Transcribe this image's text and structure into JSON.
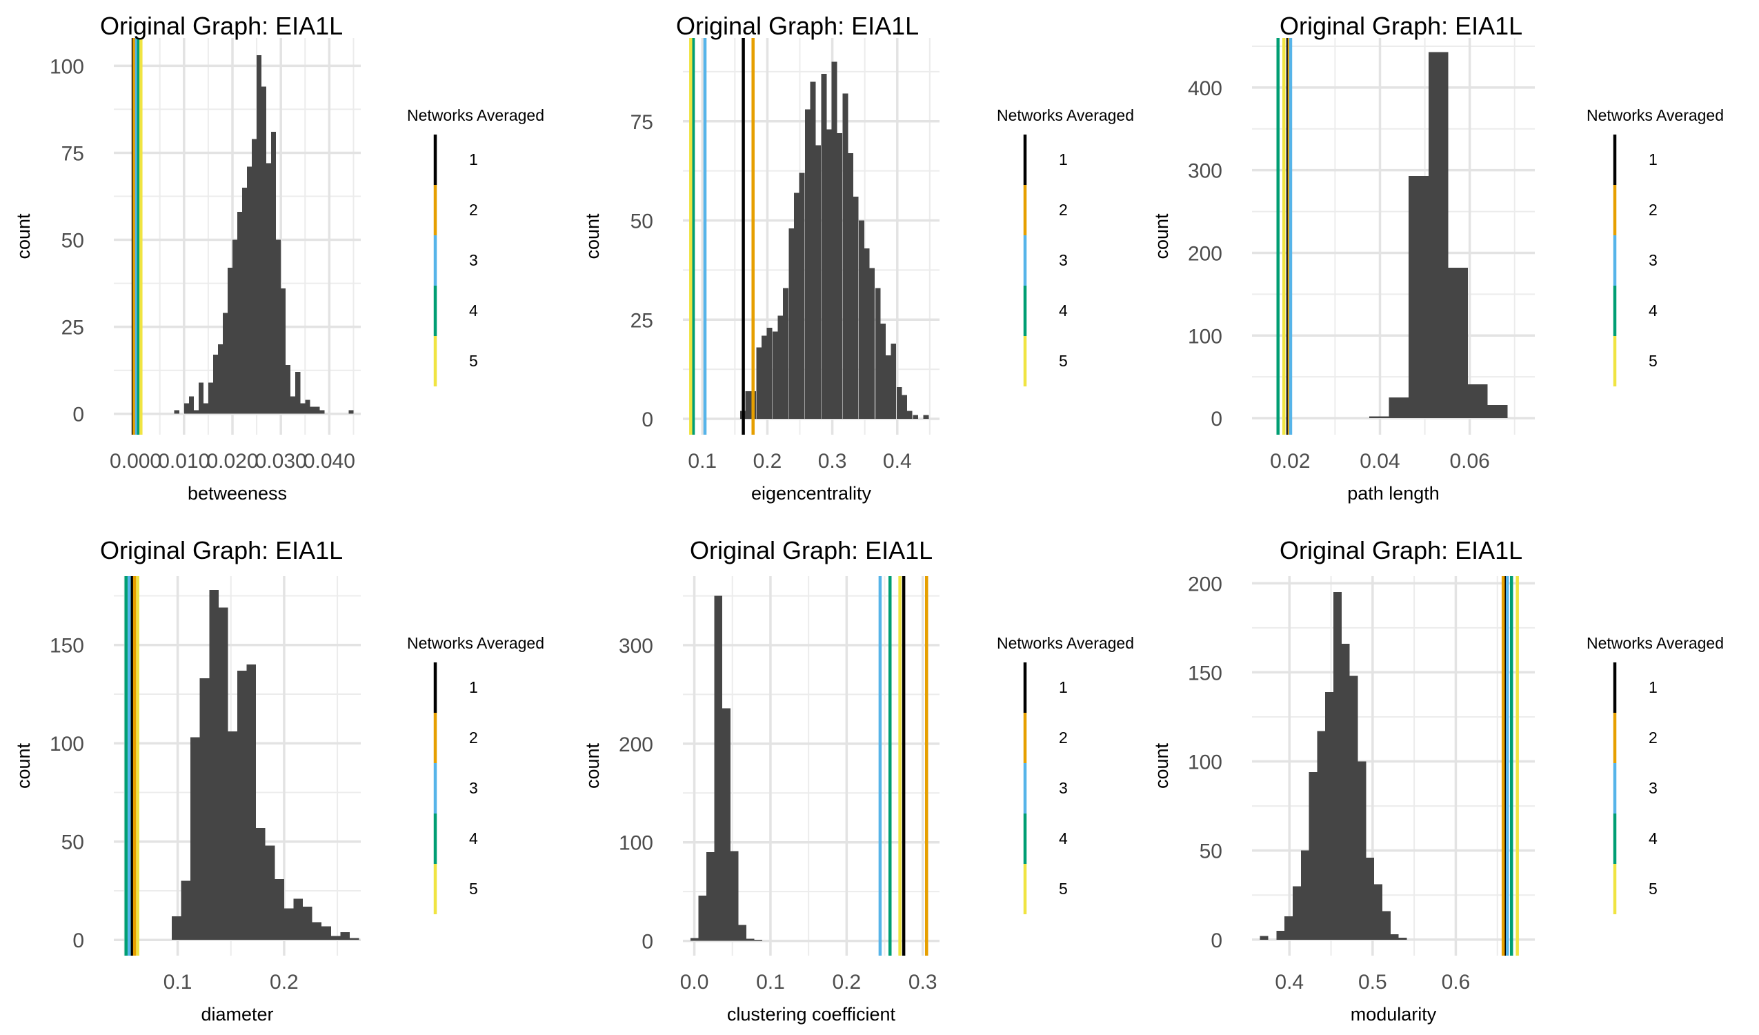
{
  "legend": {
    "title": "Networks Averaged",
    "items": [
      {
        "label": "1",
        "color": "#000000"
      },
      {
        "label": "2",
        "color": "#E69F00"
      },
      {
        "label": "3",
        "color": "#56B4E9"
      },
      {
        "label": "4",
        "color": "#009E73"
      },
      {
        "label": "5",
        "color": "#F0E442"
      }
    ]
  },
  "chart_data": [
    {
      "type": "histogram",
      "title": "Original Graph: EIA1L",
      "xlabel": "betweeness",
      "ylabel": "count",
      "xlim": [
        -0.0045,
        0.0465
      ],
      "ylim": [
        -6,
        108
      ],
      "xticks": [
        0.0,
        0.01,
        0.02,
        0.03,
        0.04
      ],
      "xtick_labels": [
        "0.000",
        "0.010",
        "0.020",
        "0.030",
        "0.040"
      ],
      "yticks": [
        0,
        25,
        50,
        75,
        100
      ],
      "bin_width": 0.001,
      "bins": [
        [
          0.0,
          0
        ],
        [
          0.001,
          0
        ],
        [
          0.002,
          0
        ],
        [
          0.003,
          0
        ],
        [
          0.004,
          0
        ],
        [
          0.005,
          0
        ],
        [
          0.006,
          0
        ],
        [
          0.007,
          0
        ],
        [
          0.008,
          1
        ],
        [
          0.009,
          0
        ],
        [
          0.01,
          3
        ],
        [
          0.011,
          5
        ],
        [
          0.012,
          1
        ],
        [
          0.013,
          9
        ],
        [
          0.014,
          3
        ],
        [
          0.015,
          9
        ],
        [
          0.016,
          17
        ],
        [
          0.017,
          20
        ],
        [
          0.018,
          29
        ],
        [
          0.019,
          42
        ],
        [
          0.02,
          50
        ],
        [
          0.021,
          58
        ],
        [
          0.022,
          65
        ],
        [
          0.023,
          71
        ],
        [
          0.024,
          79
        ],
        [
          0.025,
          103
        ],
        [
          0.026,
          94
        ],
        [
          0.027,
          72
        ],
        [
          0.028,
          81
        ],
        [
          0.029,
          50
        ],
        [
          0.03,
          36
        ],
        [
          0.031,
          14
        ],
        [
          0.032,
          5
        ],
        [
          0.033,
          12
        ],
        [
          0.034,
          3
        ],
        [
          0.035,
          4
        ],
        [
          0.036,
          2
        ],
        [
          0.037,
          2
        ],
        [
          0.038,
          1
        ],
        [
          0.039,
          0
        ],
        [
          0.04,
          0
        ],
        [
          0.041,
          0
        ],
        [
          0.042,
          0
        ],
        [
          0.043,
          0
        ],
        [
          0.044,
          1
        ]
      ],
      "vlines": [
        {
          "network": "1",
          "x": -0.0005
        },
        {
          "network": "2",
          "x": -0.0003
        },
        {
          "network": "3",
          "x": 0.0002
        },
        {
          "network": "4",
          "x": 0.0006
        },
        {
          "network": "5",
          "x": 0.0011
        }
      ]
    },
    {
      "type": "histogram",
      "title": "Original Graph: EIA1L",
      "xlabel": "eigencentrality",
      "ylabel": "count",
      "xlim": [
        0.07,
        0.465
      ],
      "ylim": [
        -4,
        96
      ],
      "xticks": [
        0.1,
        0.2,
        0.3,
        0.4
      ],
      "xtick_labels": [
        "0.1",
        "0.2",
        "0.3",
        "0.4"
      ],
      "yticks": [
        0,
        25,
        50,
        75
      ],
      "bin_width": 0.0083,
      "bins": [
        [
          0.158,
          2
        ],
        [
          0.166,
          7
        ],
        [
          0.174,
          7
        ],
        [
          0.183,
          18
        ],
        [
          0.191,
          21
        ],
        [
          0.199,
          23
        ],
        [
          0.208,
          22
        ],
        [
          0.216,
          26
        ],
        [
          0.224,
          33
        ],
        [
          0.233,
          48
        ],
        [
          0.241,
          57
        ],
        [
          0.249,
          62
        ],
        [
          0.258,
          78
        ],
        [
          0.266,
          85
        ],
        [
          0.274,
          69
        ],
        [
          0.283,
          87
        ],
        [
          0.291,
          73
        ],
        [
          0.299,
          90
        ],
        [
          0.307,
          72
        ],
        [
          0.316,
          82
        ],
        [
          0.324,
          67
        ],
        [
          0.332,
          56
        ],
        [
          0.341,
          50
        ],
        [
          0.349,
          43
        ],
        [
          0.357,
          38
        ],
        [
          0.366,
          33
        ],
        [
          0.374,
          24
        ],
        [
          0.382,
          16
        ],
        [
          0.39,
          19
        ],
        [
          0.399,
          8
        ],
        [
          0.407,
          6
        ],
        [
          0.415,
          2
        ],
        [
          0.424,
          1
        ],
        [
          0.432,
          0
        ],
        [
          0.44,
          1
        ]
      ],
      "vlines": [
        {
          "network": "1",
          "x": 0.163
        },
        {
          "network": "2",
          "x": 0.178
        },
        {
          "network": "3",
          "x": 0.104
        },
        {
          "network": "4",
          "x": 0.086
        },
        {
          "network": "5",
          "x": 0.082
        }
      ]
    },
    {
      "type": "histogram",
      "title": "Original Graph: EIA1L",
      "xlabel": "path length",
      "ylabel": "count",
      "xlim": [
        0.0115,
        0.0745
      ],
      "ylim": [
        -20,
        460
      ],
      "xticks": [
        0.02,
        0.04,
        0.06
      ],
      "xtick_labels": [
        "0.02",
        "0.04",
        "0.06"
      ],
      "yticks": [
        0,
        100,
        200,
        300,
        400
      ],
      "bin_width": 0.0044,
      "bins": [
        [
          0.0376,
          2
        ],
        [
          0.042,
          25
        ],
        [
          0.0464,
          293
        ],
        [
          0.0508,
          443
        ],
        [
          0.0552,
          182
        ],
        [
          0.0596,
          41
        ],
        [
          0.064,
          16
        ]
      ],
      "vlines": [
        {
          "network": "1",
          "x": 0.0195
        },
        {
          "network": "2",
          "x": 0.0198
        },
        {
          "network": "3",
          "x": 0.0201
        },
        {
          "network": "4",
          "x": 0.0173
        },
        {
          "network": "5",
          "x": 0.0186
        }
      ]
    },
    {
      "type": "histogram",
      "title": "Original Graph: EIA1L",
      "xlabel": "diameter",
      "ylabel": "count",
      "xlim": [
        0.04,
        0.272
      ],
      "ylim": [
        -8,
        185
      ],
      "xticks": [
        0.1,
        0.2
      ],
      "xtick_labels": [
        "0.1",
        "0.2"
      ],
      "yticks": [
        0,
        50,
        100,
        150
      ],
      "bin_width": 0.0088,
      "bins": [
        [
          0.0944,
          12
        ],
        [
          0.1032,
          30
        ],
        [
          0.112,
          103
        ],
        [
          0.1208,
          133
        ],
        [
          0.1296,
          178
        ],
        [
          0.1384,
          169
        ],
        [
          0.1472,
          106
        ],
        [
          0.156,
          137
        ],
        [
          0.1648,
          140
        ],
        [
          0.1736,
          57
        ],
        [
          0.1824,
          48
        ],
        [
          0.1912,
          31
        ],
        [
          0.2,
          16
        ],
        [
          0.2088,
          21
        ],
        [
          0.2176,
          17
        ],
        [
          0.2264,
          9
        ],
        [
          0.2352,
          7
        ],
        [
          0.244,
          2
        ],
        [
          0.2528,
          4
        ],
        [
          0.2616,
          1
        ]
      ],
      "vlines": [
        {
          "network": "1",
          "x": 0.057
        },
        {
          "network": "2",
          "x": 0.0595
        },
        {
          "network": "3",
          "x": 0.0545
        },
        {
          "network": "4",
          "x": 0.0515
        },
        {
          "network": "5",
          "x": 0.0625
        }
      ]
    },
    {
      "type": "histogram",
      "title": "Original Graph: EIA1L",
      "xlabel": "clustering coefficient",
      "ylabel": "count",
      "xlim": [
        -0.015,
        0.322
      ],
      "ylim": [
        -15,
        370
      ],
      "xticks": [
        0.0,
        0.1,
        0.2,
        0.3
      ],
      "xtick_labels": [
        "0.0",
        "0.1",
        "0.2",
        "0.3"
      ],
      "yticks": [
        0,
        100,
        200,
        300
      ],
      "bin_width": 0.0105,
      "bins": [
        [
          -0.0052,
          3
        ],
        [
          0.0053,
          46
        ],
        [
          0.0158,
          90
        ],
        [
          0.0263,
          350
        ],
        [
          0.0368,
          236
        ],
        [
          0.0473,
          91
        ],
        [
          0.0578,
          16
        ],
        [
          0.0683,
          2
        ],
        [
          0.0788,
          1
        ]
      ],
      "vlines": [
        {
          "network": "1",
          "x": 0.275
        },
        {
          "network": "2",
          "x": 0.305
        },
        {
          "network": "3",
          "x": 0.244
        },
        {
          "network": "4",
          "x": 0.257
        },
        {
          "network": "5",
          "x": 0.27
        }
      ]
    },
    {
      "type": "histogram",
      "title": "Original Graph: EIA1L",
      "xlabel": "modularity",
      "ylabel": "count",
      "xlim": [
        0.355,
        0.695
      ],
      "ylim": [
        -9,
        204
      ],
      "xticks": [
        0.4,
        0.5,
        0.6
      ],
      "xtick_labels": [
        "0.4",
        "0.5",
        "0.6"
      ],
      "yticks": [
        0,
        50,
        100,
        150,
        200
      ],
      "bin_width": 0.0098,
      "bins": [
        [
          0.3647,
          2
        ],
        [
          0.3745,
          0
        ],
        [
          0.3843,
          5
        ],
        [
          0.3941,
          13
        ],
        [
          0.4039,
          30
        ],
        [
          0.4137,
          50
        ],
        [
          0.4235,
          94
        ],
        [
          0.4333,
          117
        ],
        [
          0.4431,
          139
        ],
        [
          0.4529,
          195
        ],
        [
          0.4627,
          166
        ],
        [
          0.4725,
          148
        ],
        [
          0.4823,
          100
        ],
        [
          0.4921,
          46
        ],
        [
          0.5019,
          31
        ],
        [
          0.5117,
          16
        ],
        [
          0.5215,
          3
        ],
        [
          0.5313,
          1
        ]
      ],
      "vlines": [
        {
          "network": "1",
          "x": 0.66
        },
        {
          "network": "2",
          "x": 0.657
        },
        {
          "network": "3",
          "x": 0.662
        },
        {
          "network": "4",
          "x": 0.667
        },
        {
          "network": "5",
          "x": 0.674
        }
      ]
    }
  ]
}
